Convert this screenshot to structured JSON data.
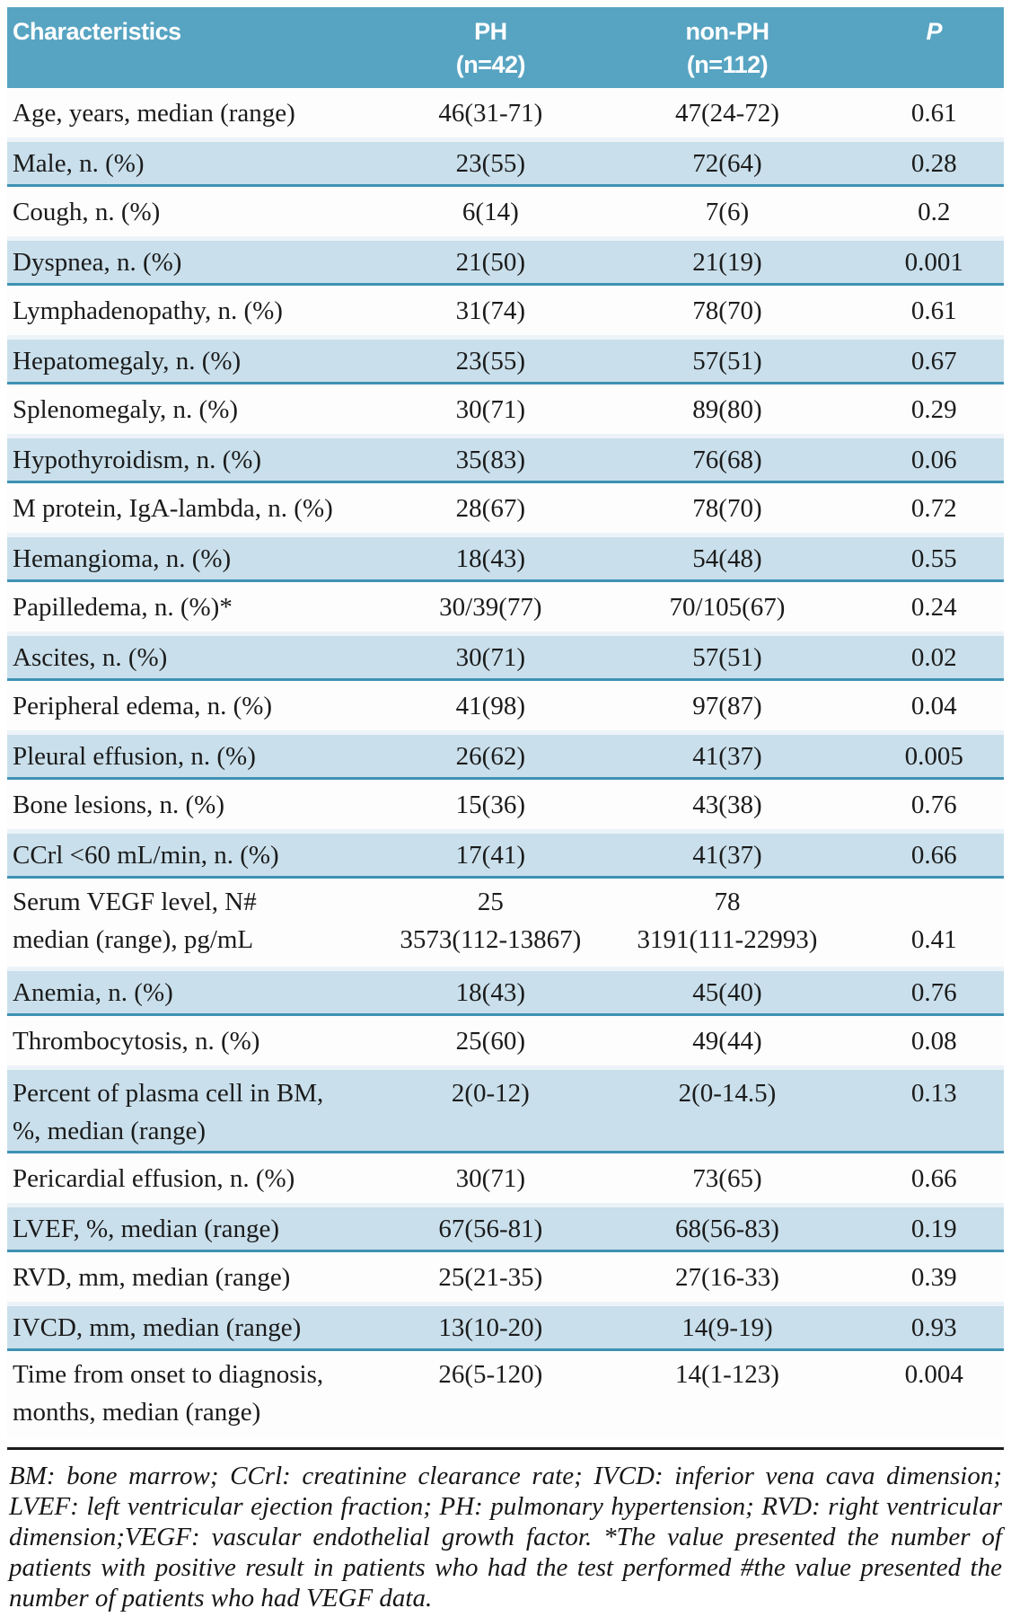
{
  "colors": {
    "header_bg": "#57a4c2",
    "row_shade": "#c9dfeb",
    "row_border": "#3e92b4",
    "divider": "#1c1c1c"
  },
  "table": {
    "header": {
      "characteristics": "Characteristics",
      "ph_line1": "PH",
      "ph_line2": "(n=42)",
      "nonph_line1": "non-PH",
      "nonph_line2": "(n=112)",
      "p": "P"
    },
    "rows": [
      {
        "shaded": false,
        "label_lines": [
          "Age, years, median (range)"
        ],
        "ph_lines": [
          "46(31-71)"
        ],
        "nonph_lines": [
          "47(24-72)"
        ],
        "p_lines": [
          "0.61"
        ]
      },
      {
        "shaded": true,
        "label_lines": [
          "Male, n. (%)"
        ],
        "ph_lines": [
          "23(55)"
        ],
        "nonph_lines": [
          "72(64)"
        ],
        "p_lines": [
          "0.28"
        ]
      },
      {
        "shaded": false,
        "label_lines": [
          "Cough, n. (%)"
        ],
        "ph_lines": [
          "6(14)"
        ],
        "nonph_lines": [
          "7(6)"
        ],
        "p_lines": [
          "0.2"
        ]
      },
      {
        "shaded": true,
        "label_lines": [
          "Dyspnea, n. (%)"
        ],
        "ph_lines": [
          "21(50)"
        ],
        "nonph_lines": [
          "21(19)"
        ],
        "p_lines": [
          "0.001"
        ]
      },
      {
        "shaded": false,
        "label_lines": [
          "Lymphadenopathy, n. (%)"
        ],
        "ph_lines": [
          "31(74)"
        ],
        "nonph_lines": [
          "78(70)"
        ],
        "p_lines": [
          "0.61"
        ]
      },
      {
        "shaded": true,
        "label_lines": [
          "Hepatomegaly, n. (%)"
        ],
        "ph_lines": [
          "23(55)"
        ],
        "nonph_lines": [
          "57(51)"
        ],
        "p_lines": [
          "0.67"
        ]
      },
      {
        "shaded": false,
        "label_lines": [
          "Splenomegaly, n. (%)"
        ],
        "ph_lines": [
          "30(71)"
        ],
        "nonph_lines": [
          "89(80)"
        ],
        "p_lines": [
          "0.29"
        ]
      },
      {
        "shaded": true,
        "label_lines": [
          "Hypothyroidism, n. (%)"
        ],
        "ph_lines": [
          "35(83)"
        ],
        "nonph_lines": [
          "76(68)"
        ],
        "p_lines": [
          "0.06"
        ]
      },
      {
        "shaded": false,
        "label_lines": [
          "M protein, IgA-lambda, n. (%)"
        ],
        "ph_lines": [
          "28(67)"
        ],
        "nonph_lines": [
          "78(70)"
        ],
        "p_lines": [
          "0.72"
        ]
      },
      {
        "shaded": true,
        "label_lines": [
          "Hemangioma, n. (%)"
        ],
        "ph_lines": [
          "18(43)"
        ],
        "nonph_lines": [
          "54(48)"
        ],
        "p_lines": [
          "0.55"
        ]
      },
      {
        "shaded": false,
        "label_lines": [
          "Papilledema, n. (%)*"
        ],
        "ph_lines": [
          "30/39(77)"
        ],
        "nonph_lines": [
          "70/105(67)"
        ],
        "p_lines": [
          "0.24"
        ]
      },
      {
        "shaded": true,
        "label_lines": [
          "Ascites, n. (%)"
        ],
        "ph_lines": [
          "30(71)"
        ],
        "nonph_lines": [
          "57(51)"
        ],
        "p_lines": [
          "0.02"
        ]
      },
      {
        "shaded": false,
        "label_lines": [
          "Peripheral edema, n. (%)"
        ],
        "ph_lines": [
          "41(98)"
        ],
        "nonph_lines": [
          "97(87)"
        ],
        "p_lines": [
          "0.04"
        ]
      },
      {
        "shaded": true,
        "label_lines": [
          "Pleural effusion, n. (%)"
        ],
        "ph_lines": [
          "26(62)"
        ],
        "nonph_lines": [
          "41(37)"
        ],
        "p_lines": [
          "0.005"
        ]
      },
      {
        "shaded": false,
        "label_lines": [
          "Bone lesions, n. (%)"
        ],
        "ph_lines": [
          "15(36)"
        ],
        "nonph_lines": [
          "43(38)"
        ],
        "p_lines": [
          "0.76"
        ]
      },
      {
        "shaded": true,
        "label_lines": [
          "CCrl <60 mL/min, n. (%)"
        ],
        "ph_lines": [
          "17(41)"
        ],
        "nonph_lines": [
          "41(37)"
        ],
        "p_lines": [
          "0.66"
        ]
      },
      {
        "shaded": false,
        "label_lines": [
          "Serum VEGF level, N#",
          "median (range), pg/mL"
        ],
        "ph_lines": [
          "25",
          "3573(112-13867)"
        ],
        "nonph_lines": [
          "78",
          "3191(111-22993)"
        ],
        "p_lines": [
          " ",
          "0.41"
        ]
      },
      {
        "shaded": true,
        "label_lines": [
          "Anemia, n. (%)"
        ],
        "ph_lines": [
          "18(43)"
        ],
        "nonph_lines": [
          "45(40)"
        ],
        "p_lines": [
          "0.76"
        ]
      },
      {
        "shaded": false,
        "label_lines": [
          "Thrombocytosis, n. (%)"
        ],
        "ph_lines": [
          "25(60)"
        ],
        "nonph_lines": [
          "49(44)"
        ],
        "p_lines": [
          "0.08"
        ]
      },
      {
        "shaded": true,
        "label_lines": [
          "Percent of plasma cell in BM,",
          "%, median (range)"
        ],
        "ph_lines": [
          "2(0-12)"
        ],
        "nonph_lines": [
          "2(0-14.5)"
        ],
        "p_lines": [
          "0.13"
        ]
      },
      {
        "shaded": false,
        "label_lines": [
          "Pericardial effusion, n. (%)"
        ],
        "ph_lines": [
          "30(71)"
        ],
        "nonph_lines": [
          "73(65)"
        ],
        "p_lines": [
          "0.66"
        ]
      },
      {
        "shaded": true,
        "label_lines": [
          "LVEF, %, median (range)"
        ],
        "ph_lines": [
          "67(56-81)"
        ],
        "nonph_lines": [
          "68(56-83)"
        ],
        "p_lines": [
          "0.19"
        ]
      },
      {
        "shaded": false,
        "label_lines": [
          "RVD, mm, median (range)"
        ],
        "ph_lines": [
          "25(21-35)"
        ],
        "nonph_lines": [
          "27(16-33)"
        ],
        "p_lines": [
          "0.39"
        ]
      },
      {
        "shaded": true,
        "label_lines": [
          "IVCD, mm, median (range)"
        ],
        "ph_lines": [
          "13(10-20)"
        ],
        "nonph_lines": [
          "14(9-19)"
        ],
        "p_lines": [
          "0.93"
        ]
      },
      {
        "shaded": false,
        "label_lines": [
          "Time from onset to diagnosis,",
          "months, median (range)"
        ],
        "ph_lines": [
          "26(5-120)"
        ],
        "nonph_lines": [
          "14(1-123)"
        ],
        "p_lines": [
          "0.004"
        ]
      }
    ],
    "footnote": "BM: bone marrow; CCrl: creatinine clearance rate; IVCD: inferior vena cava dimension; LVEF: left ventricular ejection fraction; PH: pulmonary hypertension; RVD: right ventricular dimension;VEGF: vascular endothelial growth factor. *The value presented the number of patients with positive result in patients who had the test performed #the value presented the number of patients who had VEGF data."
  }
}
